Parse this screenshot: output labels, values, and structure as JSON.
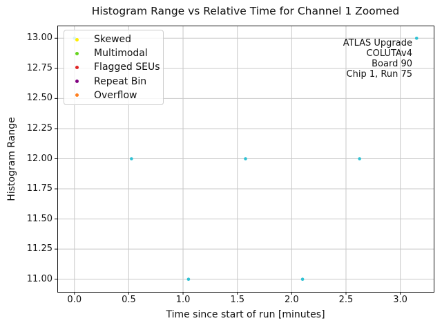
{
  "chart_data": {
    "type": "scatter",
    "title": "Histogram Range vs Relative Time for Channel 1 Zoomed",
    "xlabel": "Time since start of run [minutes]",
    "ylabel": "Histogram Range",
    "x": [
      0.0,
      0.525,
      1.05,
      1.575,
      2.1,
      2.625,
      3.15
    ],
    "y": [
      13.0,
      12.0,
      11.0,
      12.0,
      11.0,
      12.0,
      13.0
    ],
    "marker_color": "#2fc1d3",
    "grid": true,
    "grid_color": "#c8c8c8",
    "xlim": [
      -0.1575,
      3.3075
    ],
    "ylim": [
      10.895,
      13.105
    ],
    "xticks": {
      "values": [
        0.0,
        0.5,
        1.0,
        1.5,
        2.0,
        2.5,
        3.0
      ],
      "labels": [
        "0.0",
        "0.5",
        "1.0",
        "1.5",
        "2.0",
        "2.5",
        "3.0"
      ]
    },
    "yticks": {
      "values": [
        11.0,
        11.25,
        11.5,
        11.75,
        12.0,
        12.25,
        12.5,
        12.75,
        13.0
      ],
      "labels": [
        "11.00",
        "11.25",
        "11.50",
        "11.75",
        "12.00",
        "12.25",
        "12.50",
        "12.75",
        "13.00"
      ]
    },
    "legend": {
      "position": "upper left",
      "entries": [
        {
          "label": "Skewed",
          "color": "#ffee00"
        },
        {
          "label": "Multimodal",
          "color": "#66d41e"
        },
        {
          "label": "Flagged SEUs",
          "color": "#e02424"
        },
        {
          "label": "Repeat Bin",
          "color": "#800080"
        },
        {
          "label": "Overflow",
          "color": "#ff7f1e"
        }
      ]
    },
    "annotation": {
      "align": "right",
      "lines": [
        "ATLAS Upgrade",
        "COLUTAv4",
        "Board 90",
        "Chip 1, Run 75"
      ]
    }
  }
}
